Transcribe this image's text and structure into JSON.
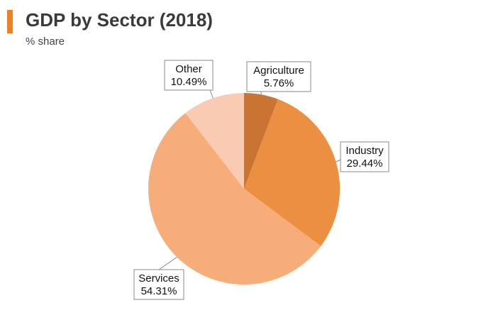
{
  "header": {
    "title": "GDP by Sector (2018)",
    "subtitle": "% share",
    "accent_color": "#f07f22"
  },
  "chart_data": {
    "type": "pie",
    "title": "GDP by Sector (2018)",
    "subtitle": "% share",
    "start_angle_deg": 0,
    "direction": "clockwise",
    "slices": [
      {
        "label": "Agriculture",
        "value": 5.76,
        "display": "5.76%",
        "color": "#c97432"
      },
      {
        "label": "Industry",
        "value": 29.44,
        "display": "29.44%",
        "color": "#eb8f42"
      },
      {
        "label": "Services",
        "value": 54.31,
        "display": "54.31%",
        "color": "#f7ad7a"
      },
      {
        "label": "Other",
        "value": 10.49,
        "display": "10.49%",
        "color": "#f9cbb3"
      }
    ]
  }
}
